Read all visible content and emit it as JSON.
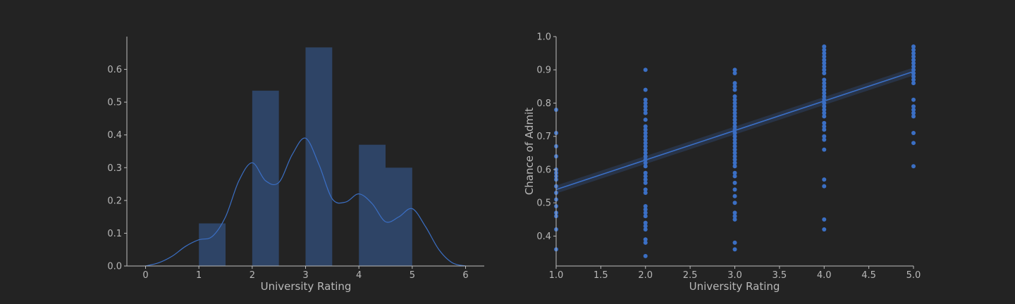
{
  "colors": {
    "background": "#232323",
    "axis": "#bcbcbc",
    "bar": "#2e4466",
    "series": "#3b6fc4"
  },
  "chart_data": [
    {
      "type": "bar",
      "subtype": "histogram-with-kde",
      "xlabel": "University Rating",
      "ylabel": "",
      "xlim": [
        -0.35,
        6.35
      ],
      "ylim": [
        0,
        0.7
      ],
      "xticks": [
        "0",
        "1",
        "2",
        "3",
        "4",
        "5",
        "6"
      ],
      "yticks": [
        "0.0",
        "0.1",
        "0.2",
        "0.3",
        "0.4",
        "0.5",
        "0.6"
      ],
      "bins": [
        {
          "x0": 1.0,
          "x1": 1.5,
          "value": 0.13
        },
        {
          "x0": 2.0,
          "x1": 2.5,
          "value": 0.535
        },
        {
          "x0": 3.0,
          "x1": 3.5,
          "value": 0.667
        },
        {
          "x0": 4.0,
          "x1": 4.5,
          "value": 0.37
        },
        {
          "x0": 4.5,
          "x1": 5.0,
          "value": 0.3
        }
      ],
      "kde": {
        "x": [
          0,
          0.25,
          0.5,
          0.75,
          1.0,
          1.25,
          1.5,
          1.75,
          2.0,
          2.25,
          2.5,
          2.75,
          3.0,
          3.25,
          3.5,
          3.75,
          4.0,
          4.25,
          4.5,
          4.75,
          5.0,
          5.25,
          5.5,
          5.75,
          6.0
        ],
        "y": [
          0.0,
          0.01,
          0.03,
          0.06,
          0.08,
          0.09,
          0.15,
          0.26,
          0.315,
          0.26,
          0.255,
          0.34,
          0.39,
          0.31,
          0.205,
          0.195,
          0.22,
          0.19,
          0.135,
          0.15,
          0.175,
          0.12,
          0.05,
          0.01,
          0.0
        ]
      },
      "grid": false,
      "legend": "none"
    },
    {
      "type": "scatter",
      "subtype": "regression",
      "xlabel": "University Rating",
      "ylabel": "Chance of Admit",
      "xlim": [
        1.0,
        5.0
      ],
      "ylim": [
        0.31,
        1.0
      ],
      "xticks": [
        "1.0",
        "1.5",
        "2.0",
        "2.5",
        "3.0",
        "3.5",
        "4.0",
        "4.5",
        "5.0"
      ],
      "yticks": [
        "0.4",
        "0.5",
        "0.6",
        "0.7",
        "0.8",
        "0.9",
        "1.0"
      ],
      "points": [
        [
          1,
          0.36
        ],
        [
          1,
          0.42
        ],
        [
          1,
          0.46
        ],
        [
          1,
          0.47
        ],
        [
          1,
          0.49
        ],
        [
          1,
          0.51
        ],
        [
          1,
          0.53
        ],
        [
          1,
          0.55
        ],
        [
          1,
          0.57
        ],
        [
          1,
          0.58
        ],
        [
          1,
          0.59
        ],
        [
          1,
          0.6
        ],
        [
          1,
          0.64
        ],
        [
          1,
          0.67
        ],
        [
          1,
          0.71
        ],
        [
          1,
          0.78
        ],
        [
          2,
          0.34
        ],
        [
          2,
          0.38
        ],
        [
          2,
          0.39
        ],
        [
          2,
          0.42
        ],
        [
          2,
          0.43
        ],
        [
          2,
          0.44
        ],
        [
          2,
          0.46
        ],
        [
          2,
          0.47
        ],
        [
          2,
          0.48
        ],
        [
          2,
          0.49
        ],
        [
          2,
          0.53
        ],
        [
          2,
          0.54
        ],
        [
          2,
          0.56
        ],
        [
          2,
          0.57
        ],
        [
          2,
          0.58
        ],
        [
          2,
          0.59
        ],
        [
          2,
          0.61
        ],
        [
          2,
          0.62
        ],
        [
          2,
          0.63
        ],
        [
          2,
          0.64
        ],
        [
          2,
          0.65
        ],
        [
          2,
          0.66
        ],
        [
          2,
          0.67
        ],
        [
          2,
          0.68
        ],
        [
          2,
          0.69
        ],
        [
          2,
          0.7
        ],
        [
          2,
          0.71
        ],
        [
          2,
          0.72
        ],
        [
          2,
          0.73
        ],
        [
          2,
          0.75
        ],
        [
          2,
          0.77
        ],
        [
          2,
          0.78
        ],
        [
          2,
          0.79
        ],
        [
          2,
          0.8
        ],
        [
          2,
          0.81
        ],
        [
          2,
          0.84
        ],
        [
          2,
          0.9
        ],
        [
          3,
          0.36
        ],
        [
          3,
          0.38
        ],
        [
          3,
          0.45
        ],
        [
          3,
          0.46
        ],
        [
          3,
          0.47
        ],
        [
          3,
          0.5
        ],
        [
          3,
          0.52
        ],
        [
          3,
          0.54
        ],
        [
          3,
          0.56
        ],
        [
          3,
          0.58
        ],
        [
          3,
          0.59
        ],
        [
          3,
          0.61
        ],
        [
          3,
          0.62
        ],
        [
          3,
          0.63
        ],
        [
          3,
          0.64
        ],
        [
          3,
          0.65
        ],
        [
          3,
          0.66
        ],
        [
          3,
          0.67
        ],
        [
          3,
          0.68
        ],
        [
          3,
          0.69
        ],
        [
          3,
          0.7
        ],
        [
          3,
          0.71
        ],
        [
          3,
          0.72
        ],
        [
          3,
          0.73
        ],
        [
          3,
          0.74
        ],
        [
          3,
          0.75
        ],
        [
          3,
          0.76
        ],
        [
          3,
          0.77
        ],
        [
          3,
          0.78
        ],
        [
          3,
          0.79
        ],
        [
          3,
          0.8
        ],
        [
          3,
          0.81
        ],
        [
          3,
          0.82
        ],
        [
          3,
          0.84
        ],
        [
          3,
          0.85
        ],
        [
          3,
          0.86
        ],
        [
          3,
          0.89
        ],
        [
          3,
          0.9
        ],
        [
          4,
          0.42
        ],
        [
          4,
          0.45
        ],
        [
          4,
          0.55
        ],
        [
          4,
          0.57
        ],
        [
          4,
          0.66
        ],
        [
          4,
          0.69
        ],
        [
          4,
          0.7
        ],
        [
          4,
          0.72
        ],
        [
          4,
          0.73
        ],
        [
          4,
          0.74
        ],
        [
          4,
          0.76
        ],
        [
          4,
          0.77
        ],
        [
          4,
          0.78
        ],
        [
          4,
          0.79
        ],
        [
          4,
          0.8
        ],
        [
          4,
          0.81
        ],
        [
          4,
          0.82
        ],
        [
          4,
          0.83
        ],
        [
          4,
          0.84
        ],
        [
          4,
          0.85
        ],
        [
          4,
          0.86
        ],
        [
          4,
          0.87
        ],
        [
          4,
          0.89
        ],
        [
          4,
          0.9
        ],
        [
          4,
          0.91
        ],
        [
          4,
          0.92
        ],
        [
          4,
          0.93
        ],
        [
          4,
          0.94
        ],
        [
          4,
          0.95
        ],
        [
          4,
          0.96
        ],
        [
          4,
          0.97
        ],
        [
          5,
          0.61
        ],
        [
          5,
          0.68
        ],
        [
          5,
          0.71
        ],
        [
          5,
          0.76
        ],
        [
          5,
          0.77
        ],
        [
          5,
          0.78
        ],
        [
          5,
          0.79
        ],
        [
          5,
          0.81
        ],
        [
          5,
          0.86
        ],
        [
          5,
          0.87
        ],
        [
          5,
          0.88
        ],
        [
          5,
          0.89
        ],
        [
          5,
          0.9
        ],
        [
          5,
          0.91
        ],
        [
          5,
          0.92
        ],
        [
          5,
          0.93
        ],
        [
          5,
          0.94
        ],
        [
          5,
          0.95
        ],
        [
          5,
          0.96
        ],
        [
          5,
          0.97
        ]
      ],
      "regression": {
        "x": [
          1.0,
          5.0
        ],
        "y": [
          0.54,
          0.895
        ]
      },
      "ci": {
        "x": [
          1.0,
          5.0
        ],
        "upper": [
          0.552,
          0.907
        ],
        "lower": [
          0.528,
          0.883
        ]
      },
      "grid": false,
      "legend": "none"
    }
  ]
}
